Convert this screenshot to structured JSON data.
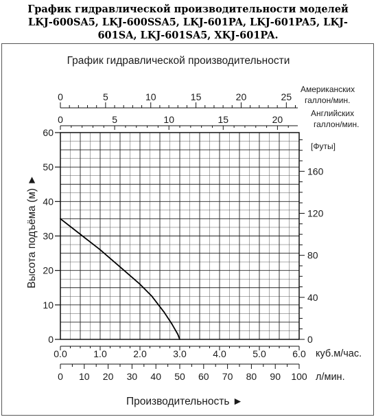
{
  "page_title_lines": [
    "График гидравлической производительности моделей",
    "LKJ-600SA5, LKJ-600SSA5, LKJ-601PA, LKJ-601PA5, LKJ-",
    "601SA, LKJ-601SA5, XKJ-601PA."
  ],
  "chart_data": {
    "type": "line",
    "title": "График гидравлической производительности",
    "xlabel": "Производительность ►",
    "ylabel": "Высота подъёма (м) ►",
    "xlim": [
      0,
      6
    ],
    "ylim": [
      0,
      60
    ],
    "grid": true,
    "x_ticks": [
      "0.0",
      "1.0",
      "2.0",
      "3.0",
      "4.0",
      "5.0",
      "6.0"
    ],
    "x_unit": "куб.м/час.",
    "y_ticks": [
      "0",
      "10",
      "20",
      "30",
      "40",
      "50",
      "60"
    ],
    "series": [
      {
        "color": "#000000",
        "x": [
          0.0,
          0.5,
          1.0,
          1.5,
          2.0,
          2.3,
          2.6,
          2.8,
          2.95,
          3.0
        ],
        "y": [
          35,
          30.5,
          26,
          21,
          16,
          12.5,
          8,
          4.5,
          1.5,
          0
        ]
      }
    ],
    "secondary_axes": {
      "us_gallons": {
        "label": "Американских галлон/мин.",
        "ticks": [
          "0",
          "5",
          "10",
          "15",
          "20",
          "25"
        ],
        "values": [
          0,
          5,
          10,
          15,
          20,
          25
        ]
      },
      "uk_gallons": {
        "label": "Английских галлон/мин.",
        "ticks": [
          "0",
          "5",
          "10",
          "15",
          "20"
        ],
        "values": [
          0,
          5,
          10,
          15,
          20
        ]
      },
      "feet": {
        "label": "[Футы]",
        "ticks": [
          "0",
          "40",
          "80",
          "120",
          "160"
        ],
        "values": [
          0,
          40,
          80,
          120,
          160
        ]
      },
      "liters": {
        "label": "л/мин.",
        "ticks": [
          "0",
          "10",
          "20",
          "30",
          "40",
          "50",
          "60",
          "70",
          "80",
          "90",
          "100"
        ],
        "values": [
          0,
          10,
          20,
          30,
          40,
          50,
          60,
          70,
          80,
          90,
          100
        ]
      }
    }
  }
}
